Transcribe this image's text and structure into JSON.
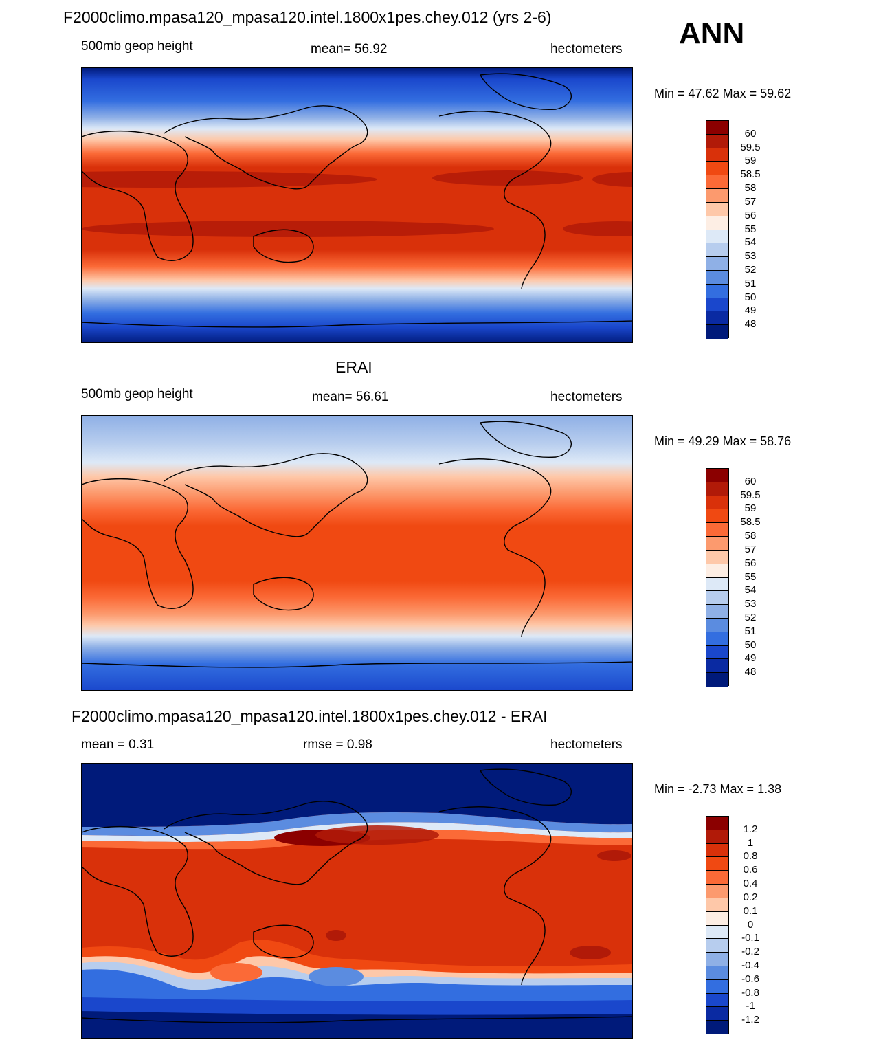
{
  "season": "ANN",
  "panels": [
    {
      "title": "F2000climo.mpasa120_mpasa120.intel.1800x1pes.chey.012 (yrs 2-6)",
      "left_label": "500mb geop height",
      "center_label": "mean=  56.92",
      "units": "hectometers",
      "minmax": "Min =  47.62 Max =  59.62",
      "colorbar": {
        "labels": [
          "60",
          "59.5",
          "59",
          "58.5",
          "58",
          "57",
          "56",
          "55",
          "54",
          "53",
          "52",
          "51",
          "50",
          "49",
          "48"
        ],
        "colors": [
          "#8b0000",
          "#b11a08",
          "#d9310a",
          "#f04912",
          "#fb6a37",
          "#fc9a6e",
          "#fec8a9",
          "#fdeee4",
          "#dde9f7",
          "#b7cdee",
          "#8fb0e6",
          "#5b8ce0",
          "#336ee0",
          "#1a47cc",
          "#0a2aa2",
          "#001a7a"
        ]
      }
    },
    {
      "title": "ERAI",
      "left_label": "500mb geop height",
      "center_label": "mean=  56.61",
      "units": "hectometers",
      "minmax": "Min =  49.29 Max =  58.76",
      "colorbar": {
        "labels": [
          "60",
          "59.5",
          "59",
          "58.5",
          "58",
          "57",
          "56",
          "55",
          "54",
          "53",
          "52",
          "51",
          "50",
          "49",
          "48"
        ],
        "colors": [
          "#8b0000",
          "#b11a08",
          "#d9310a",
          "#f04912",
          "#fb6a37",
          "#fc9a6e",
          "#fec8a9",
          "#fdeee4",
          "#dde9f7",
          "#b7cdee",
          "#8fb0e6",
          "#5b8ce0",
          "#336ee0",
          "#1a47cc",
          "#0a2aa2",
          "#001a7a"
        ]
      }
    },
    {
      "title": "F2000climo.mpasa120_mpasa120.intel.1800x1pes.chey.012 - ERAI",
      "left_label": "mean =   0.31",
      "center_label": "rmse =   0.98",
      "units": "hectometers",
      "minmax": "Min =  -2.73 Max =   1.38",
      "colorbar": {
        "labels": [
          "1.2",
          "1",
          "0.8",
          "0.6",
          "0.4",
          "0.2",
          "0.1",
          "0",
          "-0.1",
          "-0.2",
          "-0.4",
          "-0.6",
          "-0.8",
          "-1",
          "-1.2"
        ],
        "colors": [
          "#8b0000",
          "#b11a08",
          "#d9310a",
          "#f04912",
          "#fb6a37",
          "#fc9a6e",
          "#fec8a9",
          "#fdeee4",
          "#dde9f7",
          "#b7cdee",
          "#8fb0e6",
          "#5b8ce0",
          "#336ee0",
          "#1a47cc",
          "#0a2aa2",
          "#001a7a"
        ]
      }
    }
  ]
}
